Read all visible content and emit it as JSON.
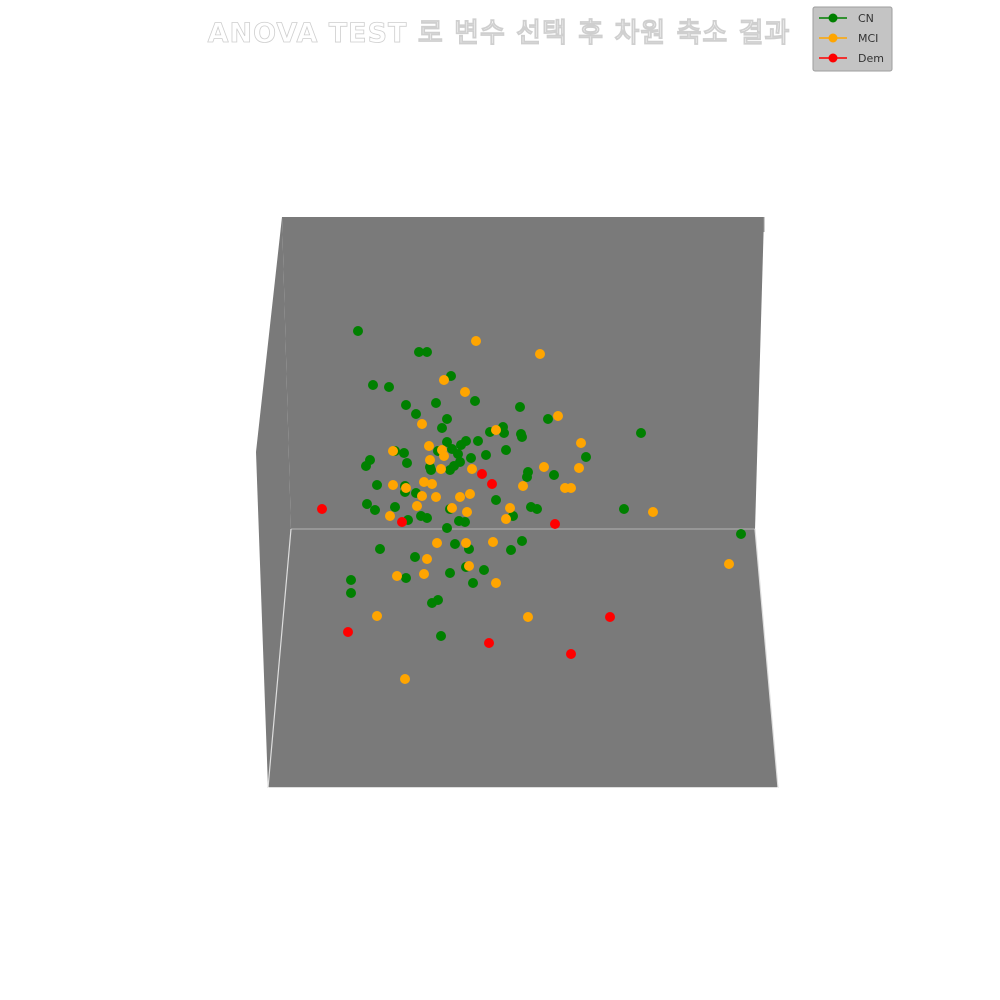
{
  "chart_data": {
    "type": "scatter",
    "projection": "3d",
    "title": "ANOVA TEST 로 변수 선택 후 차원 축소 결과",
    "legend_position": "top-right",
    "grid": false,
    "colors": {
      "CN": "#008000",
      "MCI": "#ffa500",
      "Dem": "#ff0000",
      "pane": "#7a7a7a"
    },
    "series": [
      {
        "name": "CN",
        "color": "#008000",
        "points": [
          [
            358,
            331
          ],
          [
            419,
            352
          ],
          [
            427,
            352
          ],
          [
            373,
            385
          ],
          [
            389,
            387
          ],
          [
            451,
            376
          ],
          [
            406,
            405
          ],
          [
            475,
            401
          ],
          [
            436,
            403
          ],
          [
            416,
            414
          ],
          [
            447,
            419
          ],
          [
            520,
            407
          ],
          [
            548,
            419
          ],
          [
            442,
            428
          ],
          [
            503,
            427
          ],
          [
            490,
            432
          ],
          [
            504,
            433
          ],
          [
            521,
            434
          ],
          [
            522,
            437
          ],
          [
            641,
            433
          ],
          [
            466,
            441
          ],
          [
            461,
            445
          ],
          [
            478,
            441
          ],
          [
            447,
            442
          ],
          [
            452,
            449
          ],
          [
            458,
            454
          ],
          [
            438,
            451
          ],
          [
            506,
            450
          ],
          [
            404,
            453
          ],
          [
            370,
            460
          ],
          [
            395,
            451
          ],
          [
            366,
            466
          ],
          [
            407,
            463
          ],
          [
            430,
            467
          ],
          [
            454,
            466
          ],
          [
            486,
            455
          ],
          [
            460,
            462
          ],
          [
            471,
            458
          ],
          [
            586,
            457
          ],
          [
            528,
            472
          ],
          [
            527,
            477
          ],
          [
            554,
            475
          ],
          [
            431,
            470
          ],
          [
            450,
            470
          ],
          [
            405,
            486
          ],
          [
            416,
            493
          ],
          [
            377,
            485
          ],
          [
            367,
            504
          ],
          [
            395,
            507
          ],
          [
            375,
            510
          ],
          [
            450,
            509
          ],
          [
            496,
            500
          ],
          [
            531,
            507
          ],
          [
            537,
            509
          ],
          [
            624,
            509
          ],
          [
            405,
            492
          ],
          [
            421,
            516
          ],
          [
            427,
            518
          ],
          [
            408,
            520
          ],
          [
            459,
            521
          ],
          [
            465,
            522
          ],
          [
            447,
            528
          ],
          [
            513,
            516
          ],
          [
            741,
            534
          ],
          [
            380,
            549
          ],
          [
            455,
            544
          ],
          [
            469,
            549
          ],
          [
            522,
            541
          ],
          [
            511,
            550
          ],
          [
            415,
            557
          ],
          [
            466,
            567
          ],
          [
            484,
            570
          ],
          [
            406,
            578
          ],
          [
            450,
            573
          ],
          [
            473,
            583
          ],
          [
            351,
            580
          ],
          [
            351,
            593
          ],
          [
            438,
            600
          ],
          [
            432,
            603
          ],
          [
            441,
            636
          ]
        ]
      },
      {
        "name": "MCI",
        "color": "#ffa500",
        "points": [
          [
            476,
            341
          ],
          [
            540,
            354
          ],
          [
            444,
            380
          ],
          [
            465,
            392
          ],
          [
            558,
            416
          ],
          [
            422,
            424
          ],
          [
            496,
            430
          ],
          [
            581,
            443
          ],
          [
            393,
            451
          ],
          [
            429,
            446
          ],
          [
            442,
            450
          ],
          [
            444,
            456
          ],
          [
            430,
            460
          ],
          [
            579,
            468
          ],
          [
            441,
            469
          ],
          [
            472,
            469
          ],
          [
            544,
            467
          ],
          [
            424,
            482
          ],
          [
            393,
            485
          ],
          [
            406,
            488
          ],
          [
            432,
            484
          ],
          [
            436,
            497
          ],
          [
            422,
            496
          ],
          [
            460,
            497
          ],
          [
            470,
            494
          ],
          [
            523,
            486
          ],
          [
            565,
            488
          ],
          [
            571,
            488
          ],
          [
            417,
            506
          ],
          [
            390,
            516
          ],
          [
            452,
            508
          ],
          [
            467,
            512
          ],
          [
            510,
            508
          ],
          [
            506,
            519
          ],
          [
            653,
            512
          ],
          [
            437,
            543
          ],
          [
            466,
            543
          ],
          [
            493,
            542
          ],
          [
            427,
            559
          ],
          [
            469,
            566
          ],
          [
            397,
            576
          ],
          [
            424,
            574
          ],
          [
            496,
            583
          ],
          [
            729,
            564
          ],
          [
            377,
            616
          ],
          [
            528,
            617
          ],
          [
            405,
            679
          ]
        ]
      },
      {
        "name": "Dem",
        "color": "#ff0000",
        "points": [
          [
            482,
            474
          ],
          [
            492,
            484
          ],
          [
            322,
            509
          ],
          [
            402,
            522
          ],
          [
            555,
            524
          ],
          [
            610,
            617
          ],
          [
            348,
            632
          ],
          [
            489,
            643
          ],
          [
            571,
            654
          ]
        ]
      }
    ]
  }
}
